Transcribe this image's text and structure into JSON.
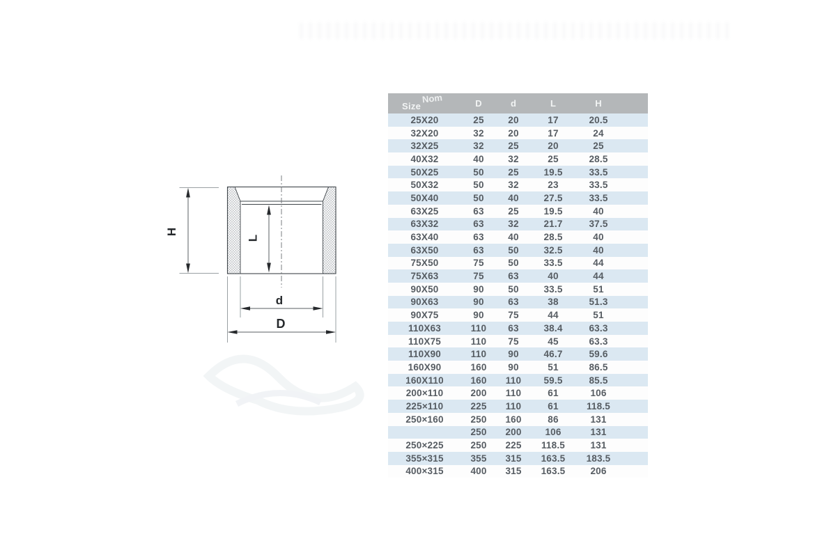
{
  "diagram": {
    "dimension_labels": {
      "overall_height": "H",
      "socket_depth": "L",
      "inner_diameter": "d",
      "outer_diameter": "D"
    }
  },
  "table": {
    "header": {
      "size_label": "Size",
      "nom_label": "Nom",
      "columns": [
        "D",
        "d",
        "L",
        "H"
      ]
    },
    "rows": [
      {
        "size": "25X20",
        "D": "25",
        "d": "20",
        "L": "17",
        "H": "20.5"
      },
      {
        "size": "32X20",
        "D": "32",
        "d": "20",
        "L": "17",
        "H": "24"
      },
      {
        "size": "32X25",
        "D": "32",
        "d": "25",
        "L": "20",
        "H": "25"
      },
      {
        "size": "40X32",
        "D": "40",
        "d": "32",
        "L": "25",
        "H": "28.5"
      },
      {
        "size": "50X25",
        "D": "50",
        "d": "25",
        "L": "19.5",
        "H": "33.5"
      },
      {
        "size": "50X32",
        "D": "50",
        "d": "32",
        "L": "23",
        "H": "33.5"
      },
      {
        "size": "50X40",
        "D": "50",
        "d": "40",
        "L": "27.5",
        "H": "33.5"
      },
      {
        "size": "63X25",
        "D": "63",
        "d": "25",
        "L": "19.5",
        "H": "40"
      },
      {
        "size": "63X32",
        "D": "63",
        "d": "32",
        "L": "21.7",
        "H": "37.5"
      },
      {
        "size": "63X40",
        "D": "63",
        "d": "40",
        "L": "28.5",
        "H": "40"
      },
      {
        "size": "63X50",
        "D": "63",
        "d": "50",
        "L": "32.5",
        "H": "40"
      },
      {
        "size": "75X50",
        "D": "75",
        "d": "50",
        "L": "33.5",
        "H": "44"
      },
      {
        "size": "75X63",
        "D": "75",
        "d": "63",
        "L": "40",
        "H": "44"
      },
      {
        "size": "90X50",
        "D": "90",
        "d": "50",
        "L": "33.5",
        "H": "51"
      },
      {
        "size": "90X63",
        "D": "90",
        "d": "63",
        "L": "38",
        "H": "51.3"
      },
      {
        "size": "90X75",
        "D": "90",
        "d": "75",
        "L": "44",
        "H": "51"
      },
      {
        "size": "110X63",
        "D": "110",
        "d": "63",
        "L": "38.4",
        "H": "63.3"
      },
      {
        "size": "110X75",
        "D": "110",
        "d": "75",
        "L": "45",
        "H": "63.3"
      },
      {
        "size": "110X90",
        "D": "110",
        "d": "90",
        "L": "46.7",
        "H": "59.6"
      },
      {
        "size": "160X90",
        "D": "160",
        "d": "90",
        "L": "51",
        "H": "86.5"
      },
      {
        "size": "160X110",
        "D": "160",
        "d": "110",
        "L": "59.5",
        "H": "85.5"
      },
      {
        "size": "200×110",
        "D": "200",
        "d": "110",
        "L": "61",
        "H": "106"
      },
      {
        "size": "225×110",
        "D": "225",
        "d": "110",
        "L": "61",
        "H": "118.5"
      },
      {
        "size": "250×160",
        "D": "250",
        "d": "160",
        "L": "86",
        "H": "131"
      },
      {
        "size": "",
        "D": "250",
        "d": "200",
        "L": "106",
        "H": "131"
      },
      {
        "size": "250×225",
        "D": "250",
        "d": "225",
        "L": "118.5",
        "H": "131"
      },
      {
        "size": "355×315",
        "D": "355",
        "d": "315",
        "L": "163.5",
        "H": "183.5"
      },
      {
        "size": "400×315",
        "D": "400",
        "d": "315",
        "L": "163.5",
        "H": "206"
      }
    ]
  },
  "colors": {
    "header_bg": "#b4b7b9",
    "header_text": "#f2f4f4",
    "row_alt_bg": "#dbe8f2",
    "row_bg": "#fdfdfd",
    "cell_text": "#565c62",
    "drawing_line": "#3e4449"
  }
}
